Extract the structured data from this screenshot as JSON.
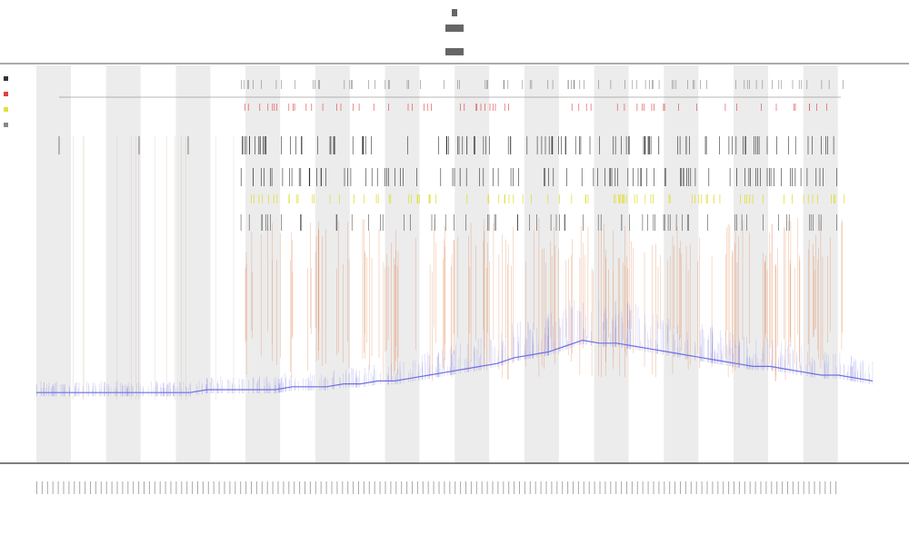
{
  "chart_data": {
    "type": "line",
    "title": "",
    "xlabel": "",
    "ylabel": "",
    "grid": false,
    "legend_position": "top-left",
    "background_band_color": "#ececec",
    "series": [
      {
        "color": "#6f6fe0",
        "kind": "baseline-area",
        "values": [
          4,
          4,
          4,
          4,
          4,
          4,
          4,
          4,
          4,
          4,
          5,
          5,
          5,
          5,
          5,
          6,
          6,
          6,
          7,
          7,
          8,
          8,
          9,
          10,
          11,
          12,
          13,
          14,
          16,
          17,
          18,
          20,
          22,
          21,
          21,
          20,
          19,
          18,
          17,
          16,
          15,
          14,
          13,
          13,
          12,
          11,
          10,
          10,
          9,
          8
        ]
      },
      {
        "color": "#e07a40",
        "kind": "spikes"
      },
      {
        "color": "#e0e040",
        "kind": "spikes"
      },
      {
        "color": "#e04040",
        "kind": "marks"
      },
      {
        "color": "#333333",
        "kind": "marks"
      }
    ]
  }
}
